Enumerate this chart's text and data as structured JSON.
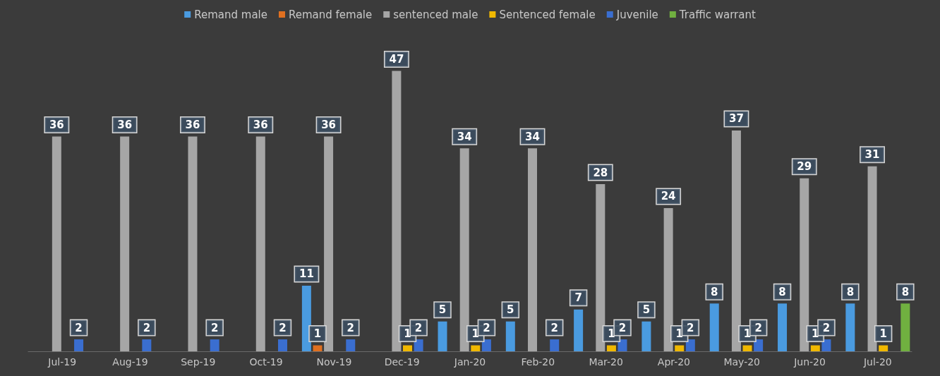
{
  "chart_data": {
    "type": "bar",
    "categories": [
      "Jul-19",
      "Aug-19",
      "Sep-19",
      "Oct-19",
      "Nov-19",
      "Dec-19",
      "Jan-20",
      "Feb-20",
      "Mar-20",
      "Apr-20",
      "May-20",
      "Jun-20",
      "Jul-20"
    ],
    "series": [
      {
        "name": "Remand male",
        "color": "#4a9be0",
        "values": [
          null,
          null,
          null,
          null,
          11,
          null,
          5,
          5,
          7,
          5,
          8,
          8,
          8
        ]
      },
      {
        "name": "Remand female",
        "color": "#e07020",
        "values": [
          null,
          null,
          null,
          null,
          1,
          null,
          null,
          null,
          null,
          null,
          null,
          null,
          null
        ]
      },
      {
        "name": "sentenced male",
        "color": "#a6a6a6",
        "values": [
          36,
          36,
          36,
          36,
          36,
          47,
          34,
          34,
          28,
          24,
          37,
          29,
          31
        ]
      },
      {
        "name": "Sentenced female",
        "color": "#f0b800",
        "values": [
          null,
          null,
          null,
          null,
          null,
          1,
          1,
          null,
          1,
          1,
          1,
          1,
          1
        ]
      },
      {
        "name": "Juvenile",
        "color": "#3a6ed0",
        "values": [
          2,
          2,
          2,
          2,
          2,
          2,
          2,
          2,
          2,
          2,
          2,
          2,
          null
        ]
      },
      {
        "name": "Traffic warrant",
        "color": "#70b040",
        "values": [
          null,
          null,
          null,
          null,
          null,
          null,
          null,
          null,
          null,
          null,
          null,
          null,
          8
        ]
      }
    ],
    "data_labels": true,
    "legend": "top"
  }
}
